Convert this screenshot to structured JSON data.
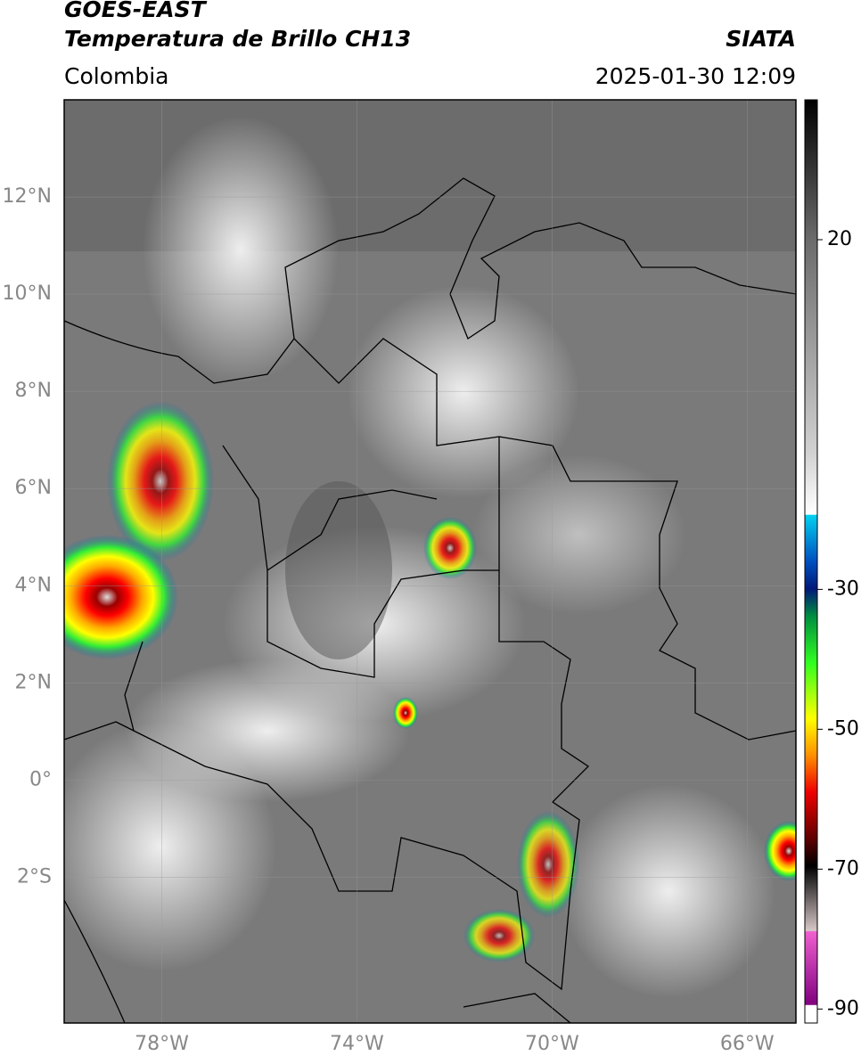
{
  "header": {
    "title": "GOES-EAST",
    "subtitle": "Temperatura de Brillo CH13",
    "source": "SIATA",
    "region": "Colombia",
    "datetime": "2025-01-30 12:09"
  },
  "map": {
    "xlim": [
      -80,
      -65
    ],
    "ylim": [
      -5,
      14
    ],
    "xticks": [
      {
        "value": -78,
        "label": "78°W"
      },
      {
        "value": -74,
        "label": "74°W"
      },
      {
        "value": -70,
        "label": "70°W"
      },
      {
        "value": -66,
        "label": "66°W"
      }
    ],
    "yticks": [
      {
        "value": 12,
        "label": "12°N"
      },
      {
        "value": 10,
        "label": "10°N"
      },
      {
        "value": 8,
        "label": "8°N"
      },
      {
        "value": 6,
        "label": "6°N"
      },
      {
        "value": 4,
        "label": "4°N"
      },
      {
        "value": 2,
        "label": "2°N"
      },
      {
        "value": 0,
        "label": "0°"
      },
      {
        "value": -2,
        "label": "2°S"
      }
    ],
    "grid": true
  },
  "colorbar": {
    "lim": [
      -92,
      40
    ],
    "ticks": [
      20,
      -30,
      -50,
      -70,
      -90
    ]
  }
}
